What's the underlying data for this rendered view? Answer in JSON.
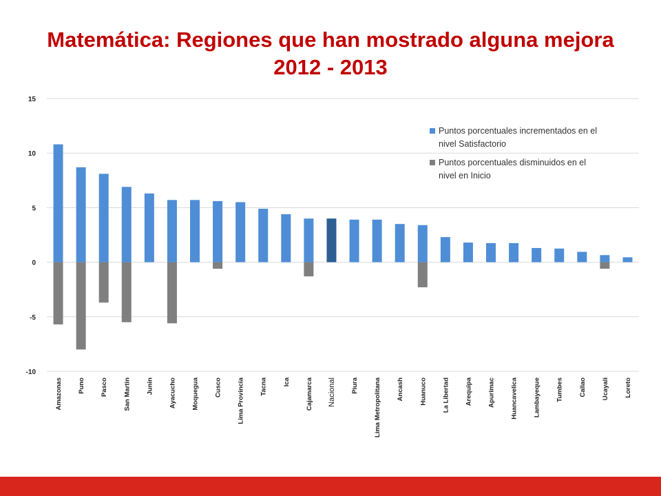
{
  "slide": {
    "title_line1": "Matemática: Regiones que han mostrado alguna mejora",
    "title_line2": "2012 - 2013"
  },
  "colors": {
    "title": "#c00000",
    "increase": "#4f8ed6",
    "decrease": "#7f7f7f",
    "highlight": "#2e5f94",
    "footer": "#d9261c"
  },
  "chart_data": {
    "type": "bar",
    "categories": [
      "Amazonas",
      "Puno",
      "Pasco",
      "San Martin",
      "Junin",
      "Ayacucho",
      "Moquegua",
      "Cusco",
      "Lima Provincia",
      "Tacna",
      "Ica",
      "Cajamarca",
      "Nacional",
      "Piura",
      "Lima Metropolitana",
      "Ancash",
      "Huanuco",
      "La Libertad",
      "Arequipa",
      "Apurimac",
      "Huancavelica",
      "Lambayeque",
      "Tumbes",
      "Callao",
      "Ucayali",
      "Loreto"
    ],
    "highlight_category": "Nacional",
    "series": [
      {
        "name": "Puntos porcentuales incrementados en el nivel Satisfactorio",
        "values": [
          10.8,
          8.7,
          8.1,
          6.9,
          6.3,
          5.7,
          5.7,
          5.6,
          5.5,
          4.9,
          4.4,
          4.0,
          4.0,
          3.9,
          3.9,
          3.5,
          3.4,
          2.3,
          1.8,
          1.75,
          1.75,
          1.3,
          1.25,
          0.95,
          0.65,
          0.45
        ]
      },
      {
        "name": "Puntos porcentuales disminuidos en el nivel en Inicio",
        "values": [
          -5.7,
          -8.0,
          -3.7,
          -5.5,
          0,
          -5.6,
          0,
          -0.6,
          0,
          0,
          0,
          -1.3,
          0,
          0,
          0,
          0,
          -2.3,
          0,
          0,
          0,
          0,
          0,
          0,
          0,
          -0.6,
          0
        ]
      }
    ],
    "ylim": [
      -10,
      15
    ],
    "yticks": [
      -10,
      -5,
      0,
      5,
      10,
      15
    ],
    "grid": true,
    "legend_position": "top-right",
    "legend_lines": [
      [
        "Puntos porcentuales incrementados en el",
        "nivel Satisfactorio"
      ],
      [
        "Puntos porcentuales disminuidos en el",
        "nivel en Inicio"
      ]
    ]
  }
}
